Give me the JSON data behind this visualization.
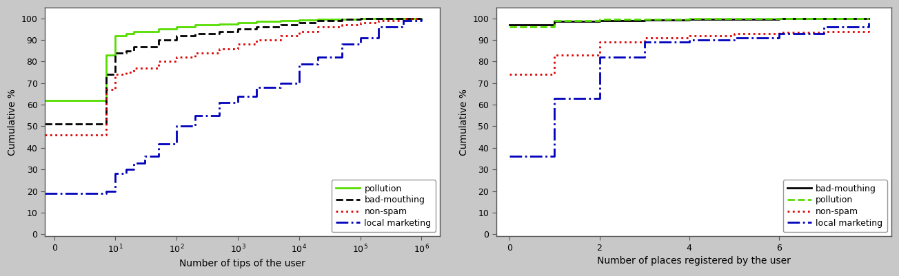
{
  "left": {
    "xlabel": "Number of tips of the user",
    "ylabel": "Cumulative %",
    "ylim": [
      -1,
      105
    ],
    "yticks": [
      0,
      10,
      20,
      30,
      40,
      50,
      60,
      70,
      80,
      90,
      100
    ],
    "series": {
      "pollution": {
        "color": "#55dd00",
        "linestyle": "-",
        "linewidth": 2.0,
        "x": [
          0.7,
          1,
          2,
          3,
          5,
          7,
          10,
          15,
          20,
          50,
          100,
          200,
          500,
          1000,
          2000,
          5000,
          10000,
          20000,
          50000,
          100000,
          200000,
          500000,
          1000000
        ],
        "y": [
          62,
          62,
          62,
          62,
          62,
          83,
          92,
          93,
          94,
          95,
          96,
          97,
          97.5,
          98,
          98.5,
          99,
          99.2,
          99.5,
          99.7,
          100,
          100,
          100,
          100
        ]
      },
      "bad-mouthing": {
        "color": "#000000",
        "linestyle": "--",
        "linewidth": 2.0,
        "x": [
          0.7,
          1,
          2,
          3,
          5,
          7,
          10,
          15,
          20,
          50,
          100,
          200,
          500,
          1000,
          2000,
          5000,
          10000,
          20000,
          50000,
          100000,
          200000,
          500000,
          1000000
        ],
        "y": [
          51,
          51,
          51,
          51,
          51,
          74,
          84,
          85,
          87,
          90,
          92,
          93,
          94,
          95,
          96,
          97,
          98,
          99,
          99.5,
          100,
          100,
          100,
          100
        ]
      },
      "non-spam": {
        "color": "#dd0000",
        "linestyle": ":",
        "linewidth": 2.0,
        "x": [
          0.7,
          1,
          2,
          3,
          5,
          7,
          10,
          15,
          20,
          50,
          100,
          200,
          500,
          1000,
          2000,
          5000,
          10000,
          20000,
          50000,
          100000,
          200000,
          500000,
          1000000
        ],
        "y": [
          46,
          46,
          46,
          46,
          46,
          67,
          74,
          75,
          77,
          80,
          82,
          84,
          86,
          88,
          90,
          92,
          94,
          96,
          97,
          98,
          99,
          100,
          100
        ]
      },
      "local marketing": {
        "color": "#0000bb",
        "linestyle": "-.",
        "linewidth": 2.0,
        "x": [
          0.7,
          1,
          2,
          3,
          5,
          7,
          10,
          15,
          20,
          30,
          50,
          100,
          200,
          500,
          1000,
          2000,
          5000,
          10000,
          20000,
          50000,
          100000,
          200000,
          500000,
          1000000
        ],
        "y": [
          19,
          19,
          19,
          19,
          19,
          20,
          28,
          30,
          33,
          36,
          42,
          50,
          55,
          61,
          64,
          68,
          70,
          79,
          82,
          88,
          91,
          96,
          99,
          100
        ]
      }
    },
    "legend_order": [
      "pollution",
      "bad-mouthing",
      "non-spam",
      "local marketing"
    ],
    "legend_loc": "lower right"
  },
  "right": {
    "xlabel": "Number of places registered by the user",
    "ylabel": "Cumulative %",
    "xlim": [
      -0.3,
      8.5
    ],
    "ylim": [
      -1,
      105
    ],
    "xticks": [
      0,
      2,
      4,
      6
    ],
    "yticks": [
      0,
      10,
      20,
      30,
      40,
      50,
      60,
      70,
      80,
      90,
      100
    ],
    "series": {
      "bad-mouthing": {
        "color": "#000000",
        "linestyle": "-",
        "linewidth": 2.0,
        "x": [
          0,
          1,
          2,
          3,
          4,
          5,
          6,
          7,
          8
        ],
        "y": [
          97,
          98.5,
          99,
          99.3,
          99.5,
          99.7,
          99.8,
          100,
          100
        ]
      },
      "pollution": {
        "color": "#55dd00",
        "linestyle": "--",
        "linewidth": 2.0,
        "x": [
          0,
          1,
          2,
          3,
          4,
          5,
          6,
          7,
          8
        ],
        "y": [
          96,
          99,
          99.5,
          99.7,
          99.8,
          99.9,
          100,
          100,
          100
        ]
      },
      "non-spam": {
        "color": "#dd0000",
        "linestyle": ":",
        "linewidth": 2.0,
        "x": [
          0,
          1,
          2,
          3,
          4,
          5,
          6,
          7,
          8
        ],
        "y": [
          74,
          83,
          89,
          91,
          92,
          93,
          93.5,
          94,
          95
        ]
      },
      "local marketing": {
        "color": "#0000bb",
        "linestyle": "-.",
        "linewidth": 2.0,
        "x": [
          0,
          1,
          2,
          3,
          4,
          5,
          6,
          7,
          8
        ],
        "y": [
          36,
          63,
          82,
          89,
          90,
          91,
          93,
          96,
          98
        ]
      }
    },
    "legend_order": [
      "bad-mouthing",
      "pollution",
      "non-spam",
      "local marketing"
    ],
    "legend_loc": "lower right"
  },
  "fig_background": "#c8c8c8",
  "axes_background": "#ffffff"
}
